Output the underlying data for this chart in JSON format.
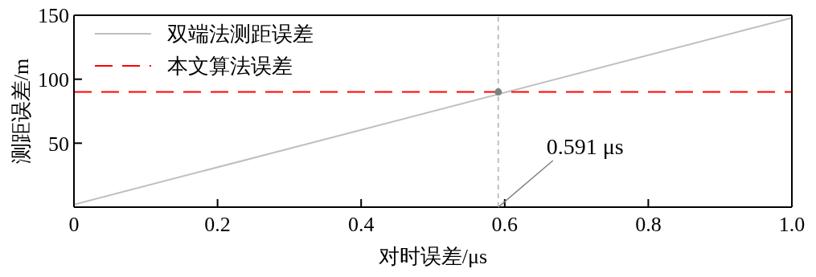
{
  "chart_data": {
    "type": "line",
    "xlabel": "对时误差/μs",
    "ylabel": "测距误差/m",
    "xlim": [
      0,
      1
    ],
    "xticks": [
      0,
      0.2,
      0.4,
      0.6,
      0.8,
      {
        "value": 1,
        "label": "1.0"
      }
    ],
    "ylim": [
      0,
      150
    ],
    "yticks": [
      50,
      100,
      150
    ],
    "grid": false,
    "legend": "top left",
    "marker": "none",
    "series": [
      {
        "name": "双端法测距误差",
        "color": "#bfbfbf",
        "x": [
          0,
          1
        ],
        "values": [
          2,
          148
        ],
        "line_style": "solid"
      },
      {
        "name": "本文算法误差",
        "color": "#ff0000",
        "x": [
          0,
          1
        ],
        "values": [
          90,
          90
        ],
        "line_style": "dashed"
      },
      {
        "type": "scatter",
        "color": "#808080",
        "x": [
          0.591
        ],
        "values": [
          90
        ],
        "marker": "circle"
      }
    ],
    "ref_lines": [
      {
        "axis": "x",
        "value": 0.591,
        "color": "#bfbfbf",
        "line_style": "dashed"
      }
    ],
    "annotations": [
      {
        "text": "0.591 μs",
        "x": 0.591,
        "y": 0
      }
    ]
  }
}
